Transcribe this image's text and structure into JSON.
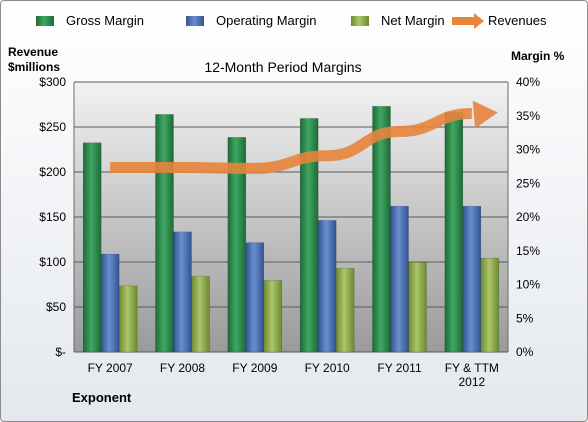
{
  "chart_data": {
    "type": "bar",
    "title": "12-Month Period Margins",
    "ylabel_left": [
      "Revenue",
      "$millions"
    ],
    "ylabel_right": "Margin %",
    "company": "Exponent",
    "categories": [
      [
        "FY 2007"
      ],
      [
        "FY 2008"
      ],
      [
        "FY 2009"
      ],
      [
        "FY 2010"
      ],
      [
        "FY 2011"
      ],
      [
        "FY & TTM",
        "2012"
      ]
    ],
    "left_ticks": [
      "$-",
      "$50",
      "$100",
      "$150",
      "$200",
      "$250",
      "$300"
    ],
    "right_ticks": [
      "0%",
      "5%",
      "10%",
      "15%",
      "20%",
      "25%",
      "30%",
      "35%",
      "40%"
    ],
    "ylim_left": [
      0,
      300
    ],
    "ylim_right": [
      0,
      40
    ],
    "grid": true,
    "legend_position": "top",
    "series": [
      {
        "name": "Gross Margin",
        "axis": "right",
        "color": "#2e8b4e",
        "values": [
          31,
          35.2,
          31.8,
          34.6,
          36.4,
          35.5
        ]
      },
      {
        "name": "Operating Margin",
        "axis": "right",
        "color": "#4a72b8",
        "values": [
          14.5,
          17.8,
          16.2,
          19.5,
          21.6,
          21.6
        ]
      },
      {
        "name": "Net Margin",
        "axis": "right",
        "color": "#8faa4c",
        "values": [
          9.8,
          11.2,
          10.6,
          12.4,
          13.3,
          13.9
        ]
      },
      {
        "name": "Revenues",
        "axis": "left",
        "type": "line",
        "color": "#e8843c",
        "values": [
          205,
          205,
          204,
          218,
          245,
          265
        ]
      }
    ]
  }
}
